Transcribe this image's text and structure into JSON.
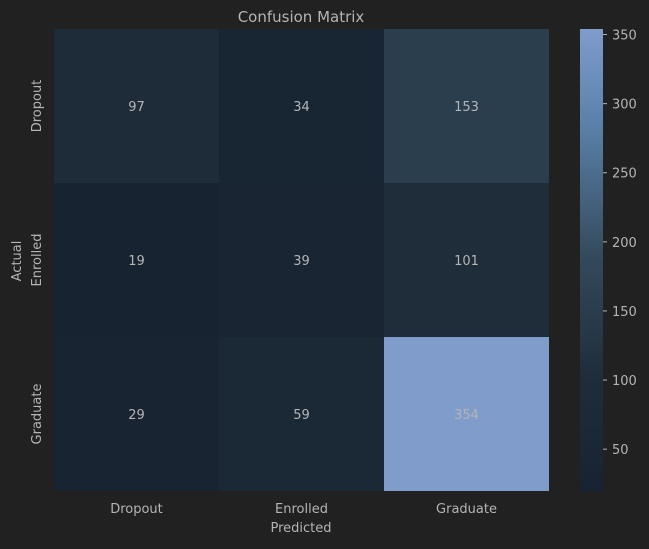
{
  "chart_data": {
    "type": "heatmap",
    "title": "Confusion Matrix",
    "xlabel": "Predicted",
    "ylabel": "Actual",
    "x_categories": [
      "Dropout",
      "Enrolled",
      "Graduate"
    ],
    "y_categories": [
      "Dropout",
      "Enrolled",
      "Graduate"
    ],
    "values": [
      [
        97,
        34,
        153
      ],
      [
        19,
        39,
        101
      ],
      [
        29,
        59,
        354
      ]
    ],
    "colorbar": {
      "min": 19,
      "max": 354,
      "ticks": [
        50,
        100,
        150,
        200,
        250,
        300,
        350
      ]
    },
    "colors": {
      "background": "#212121",
      "text": "#b4b4b4",
      "cmap_low": "#172331",
      "cmap_mid": "#33495b",
      "cmap_high_a": "#5b82ab",
      "cmap_high": "#809ccb"
    }
  }
}
